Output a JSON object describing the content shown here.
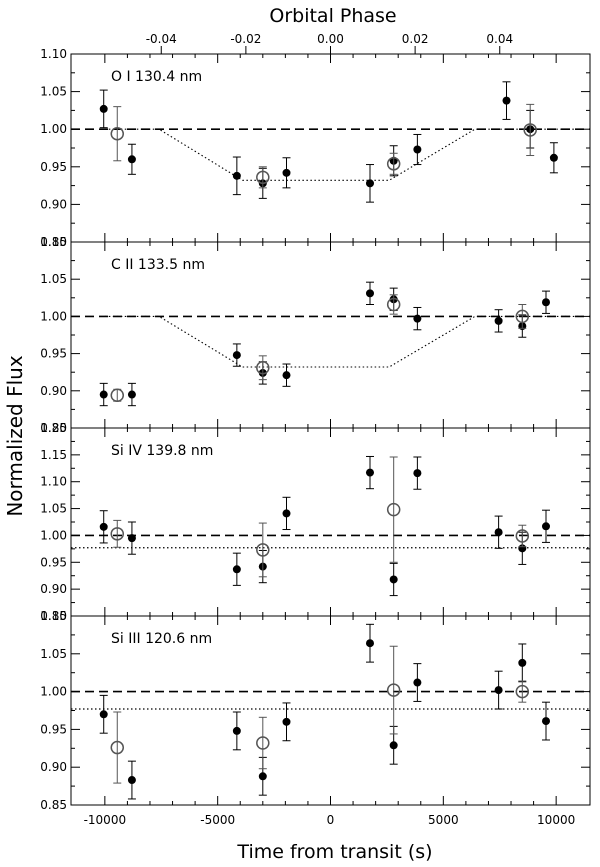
{
  "figure": {
    "top_axis_label": "Orbital Phase",
    "x_axis_label": "Time from transit (s)",
    "y_axis_label": "Normalized Flux",
    "top_ticks": [
      "-0.04",
      "-0.02",
      "0.00",
      "0.02",
      "0.04"
    ],
    "top_tick_values": [
      -0.04,
      -0.02,
      0.0,
      0.02,
      0.04
    ],
    "x_ticks": [
      "-10000",
      "-5000",
      "0",
      "5000",
      "10000"
    ],
    "x_tick_values": [
      -10000,
      -5000,
      0,
      5000,
      10000
    ],
    "colors": {
      "filled": "#000000",
      "open": "#555555",
      "axis": "#000000"
    }
  },
  "chart_data": [
    {
      "type": "scatter",
      "title": "O I 130.4 nm",
      "xlim": [
        -11500,
        11500
      ],
      "ylim": [
        0.85,
        1.1
      ],
      "yticks": [
        "0.85",
        "0.90",
        "0.95",
        "1.00",
        "1.05",
        "1.10"
      ],
      "ytick_values": [
        0.85,
        0.9,
        0.95,
        1.0,
        1.05,
        1.1
      ],
      "reference_level": 1.0,
      "model_line": {
        "x": [
          -10000,
          -7600,
          -3900,
          2600,
          6400,
          11000
        ],
        "y": [
          1.0,
          1.0,
          0.932,
          0.932,
          1.0,
          1.0
        ]
      },
      "series": [
        {
          "marker": "filled",
          "points": [
            {
              "x": -10050,
              "y": 1.027,
              "err": 0.025
            },
            {
              "x": -8800,
              "y": 0.96,
              "err": 0.02
            },
            {
              "x": -4150,
              "y": 0.938,
              "err": 0.025
            },
            {
              "x": -3000,
              "y": 0.928,
              "err": 0.02
            },
            {
              "x": -1950,
              "y": 0.942,
              "err": 0.02
            },
            {
              "x": 1750,
              "y": 0.928,
              "err": 0.025
            },
            {
              "x": 2800,
              "y": 0.958,
              "err": 0.02
            },
            {
              "x": 3850,
              "y": 0.973,
              "err": 0.02
            },
            {
              "x": 7800,
              "y": 1.038,
              "err": 0.025
            },
            {
              "x": 8850,
              "y": 1.0,
              "err": 0.025
            },
            {
              "x": 9900,
              "y": 0.962,
              "err": 0.02
            }
          ]
        },
        {
          "marker": "open",
          "points": [
            {
              "x": -9450,
              "y": 0.994,
              "err": 0.036
            },
            {
              "x": -3000,
              "y": 0.936,
              "err": 0.014
            },
            {
              "x": 2800,
              "y": 0.954,
              "err": 0.014
            },
            {
              "x": 8850,
              "y": 0.999,
              "err": 0.034
            }
          ]
        }
      ]
    },
    {
      "type": "scatter",
      "title": "C II 133.5 nm",
      "xlim": [
        -11500,
        11500
      ],
      "ylim": [
        0.85,
        1.1
      ],
      "yticks": [
        "0.85",
        "0.90",
        "0.95",
        "1.00",
        "1.05",
        "1.10"
      ],
      "ytick_values": [
        0.85,
        0.9,
        0.95,
        1.0,
        1.05,
        1.1
      ],
      "reference_level": 1.0,
      "model_line": {
        "x": [
          -10000,
          -7600,
          -3900,
          2600,
          6400,
          11000
        ],
        "y": [
          1.0,
          1.0,
          0.932,
          0.932,
          1.0,
          1.0
        ]
      },
      "series": [
        {
          "marker": "filled",
          "points": [
            {
              "x": -10050,
              "y": 0.895,
              "err": 0.015
            },
            {
              "x": -8800,
              "y": 0.895,
              "err": 0.015
            },
            {
              "x": -4150,
              "y": 0.948,
              "err": 0.015
            },
            {
              "x": -3000,
              "y": 0.924,
              "err": 0.015
            },
            {
              "x": -1950,
              "y": 0.921,
              "err": 0.015
            },
            {
              "x": 1750,
              "y": 1.031,
              "err": 0.015
            },
            {
              "x": 2800,
              "y": 1.023,
              "err": 0.015
            },
            {
              "x": 3850,
              "y": 0.997,
              "err": 0.015
            },
            {
              "x": 7450,
              "y": 0.994,
              "err": 0.015
            },
            {
              "x": 8500,
              "y": 0.987,
              "err": 0.015
            },
            {
              "x": 9550,
              "y": 1.019,
              "err": 0.015
            }
          ]
        },
        {
          "marker": "open",
          "points": [
            {
              "x": -9450,
              "y": 0.894,
              "err": 0.008
            },
            {
              "x": -3000,
              "y": 0.931,
              "err": 0.016
            },
            {
              "x": 2800,
              "y": 1.016,
              "err": 0.013
            },
            {
              "x": 8500,
              "y": 1.0,
              "err": 0.016
            }
          ]
        }
      ]
    },
    {
      "type": "scatter",
      "title": "Si IV 139.8 nm",
      "xlim": [
        -11500,
        11500
      ],
      "ylim": [
        0.85,
        1.2
      ],
      "yticks": [
        "0.85",
        "0.90",
        "0.95",
        "1.00",
        "1.05",
        "1.10",
        "1.15",
        "1.20"
      ],
      "ytick_values": [
        0.85,
        0.9,
        0.95,
        1.0,
        1.05,
        1.1,
        1.15,
        1.2
      ],
      "reference_level": 1.0,
      "flat_level": 0.977,
      "series": [
        {
          "marker": "filled",
          "points": [
            {
              "x": -10050,
              "y": 1.016,
              "err": 0.03
            },
            {
              "x": -8800,
              "y": 0.995,
              "err": 0.03
            },
            {
              "x": -4150,
              "y": 0.937,
              "err": 0.03
            },
            {
              "x": -3000,
              "y": 0.942,
              "err": 0.03
            },
            {
              "x": -1950,
              "y": 1.041,
              "err": 0.03
            },
            {
              "x": 1750,
              "y": 1.117,
              "err": 0.03
            },
            {
              "x": 2800,
              "y": 0.918,
              "err": 0.03
            },
            {
              "x": 3850,
              "y": 1.116,
              "err": 0.03
            },
            {
              "x": 7450,
              "y": 1.006,
              "err": 0.03
            },
            {
              "x": 8500,
              "y": 0.976,
              "err": 0.03
            },
            {
              "x": 9550,
              "y": 1.017,
              "err": 0.03
            }
          ]
        },
        {
          "marker": "open",
          "points": [
            {
              "x": -9450,
              "y": 1.003,
              "err": 0.025
            },
            {
              "x": -3000,
              "y": 0.973,
              "err": 0.05
            },
            {
              "x": 2800,
              "y": 1.048,
              "err": 0.098
            },
            {
              "x": 8500,
              "y": 0.999,
              "err": 0.02
            }
          ]
        }
      ]
    },
    {
      "type": "scatter",
      "title": "Si III 120.6 nm",
      "xlim": [
        -11500,
        11500
      ],
      "ylim": [
        0.85,
        1.1
      ],
      "yticks": [
        "0.85",
        "0.90",
        "0.95",
        "1.00",
        "1.05",
        "1.10"
      ],
      "ytick_values": [
        0.85,
        0.9,
        0.95,
        1.0,
        1.05,
        1.1
      ],
      "reference_level": 1.0,
      "flat_level": 0.977,
      "series": [
        {
          "marker": "filled",
          "points": [
            {
              "x": -10050,
              "y": 0.97,
              "err": 0.025
            },
            {
              "x": -8800,
              "y": 0.883,
              "err": 0.025
            },
            {
              "x": -4150,
              "y": 0.948,
              "err": 0.025
            },
            {
              "x": -3000,
              "y": 0.888,
              "err": 0.025
            },
            {
              "x": -1950,
              "y": 0.96,
              "err": 0.025
            },
            {
              "x": 1750,
              "y": 1.064,
              "err": 0.025
            },
            {
              "x": 2800,
              "y": 0.929,
              "err": 0.025
            },
            {
              "x": 3850,
              "y": 1.012,
              "err": 0.025
            },
            {
              "x": 7450,
              "y": 1.002,
              "err": 0.025
            },
            {
              "x": 8500,
              "y": 1.038,
              "err": 0.025
            },
            {
              "x": 9550,
              "y": 0.961,
              "err": 0.025
            }
          ]
        },
        {
          "marker": "open",
          "points": [
            {
              "x": -9450,
              "y": 0.926,
              "err": 0.047
            },
            {
              "x": -3000,
              "y": 0.932,
              "err": 0.034
            },
            {
              "x": 2800,
              "y": 1.002,
              "err": 0.058
            },
            {
              "x": 8500,
              "y": 1.0,
              "err": 0.014
            }
          ]
        }
      ]
    }
  ]
}
